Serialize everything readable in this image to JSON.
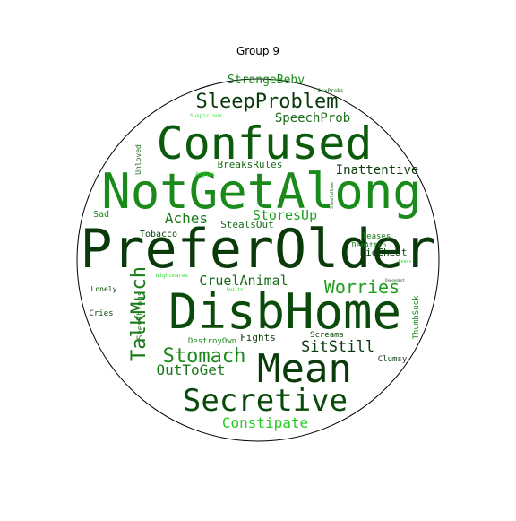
{
  "title": "Group 9",
  "words": [
    {
      "text": "PreferOlder",
      "color": "#0a3a0a"
    },
    {
      "text": "DisbHome",
      "color": "#0a4a0a"
    },
    {
      "text": "NotGetAlong",
      "color": "#1a8a1a"
    },
    {
      "text": "Confused",
      "color": "#0c5a0c"
    },
    {
      "text": "Mean",
      "color": "#0a3a0a"
    },
    {
      "text": "Secretive",
      "color": "#0a4a0a"
    },
    {
      "text": "SleepProblem",
      "color": "#0a3a0a"
    },
    {
      "text": "Stomach",
      "color": "#1a8a1a"
    },
    {
      "text": "TalkMuch",
      "color": "#1a7a1a"
    },
    {
      "text": "Worries",
      "color": "#1fa01f"
    },
    {
      "text": "Aches",
      "color": "#1a7a1a"
    },
    {
      "text": "SitStill",
      "color": "#0a3a0a"
    },
    {
      "text": "OutToGet",
      "color": "#1a7a1a"
    },
    {
      "text": "StoresUp",
      "color": "#1fa01f"
    },
    {
      "text": "CruelAnimal",
      "color": "#1a6a1a"
    },
    {
      "text": "Constipate",
      "color": "#22cc22"
    },
    {
      "text": "SpeechProb",
      "color": "#1a6a1a"
    },
    {
      "text": "Inattentive",
      "color": "#0a3a0a"
    },
    {
      "text": "StrangeBehv",
      "color": "#1a8a1a"
    },
    {
      "text": "BreaksRules",
      "color": "#1a6a1a"
    },
    {
      "text": "StealsOut",
      "color": "#1a6a1a"
    },
    {
      "text": "LieCheat",
      "color": "#0a3a0a"
    },
    {
      "text": "Tobacco",
      "color": "#0a4a0a"
    },
    {
      "text": "Sad",
      "color": "#1a8a1a"
    },
    {
      "text": "Fights",
      "color": "#0a3a0a"
    },
    {
      "text": "DestroyOwn",
      "color": "#1a8a1a"
    },
    {
      "text": "Screams",
      "color": "#0a4a0a"
    },
    {
      "text": "Clumsy",
      "color": "#0a3a0a"
    },
    {
      "text": "Cries",
      "color": "#0a4a0a"
    },
    {
      "text": "Lonely",
      "color": "#0a4a0a"
    },
    {
      "text": "SeesThings",
      "color": "#1a7a1a"
    },
    {
      "text": "ThumbSuck",
      "color": "#1a8a1a"
    },
    {
      "text": "Teases",
      "color": "#1a7a1a"
    },
    {
      "text": "DemAtten",
      "color": "#1a7a1a"
    },
    {
      "text": "Unloved",
      "color": "#1a6a1a"
    },
    {
      "text": "Argues",
      "color": "#33dd33"
    },
    {
      "text": "Suspicious",
      "color": "#33dd33"
    },
    {
      "text": "SexProbs",
      "color": "#1a6a1a"
    },
    {
      "text": "StealsHome",
      "color": "#1a6a1a"
    },
    {
      "text": "Nightmares",
      "color": "#33dd33"
    },
    {
      "text": "Guilty",
      "color": "#33dd33"
    },
    {
      "text": "Fears",
      "color": "#33dd33"
    },
    {
      "text": "Dependent",
      "color": "#1a4a1a"
    }
  ]
}
